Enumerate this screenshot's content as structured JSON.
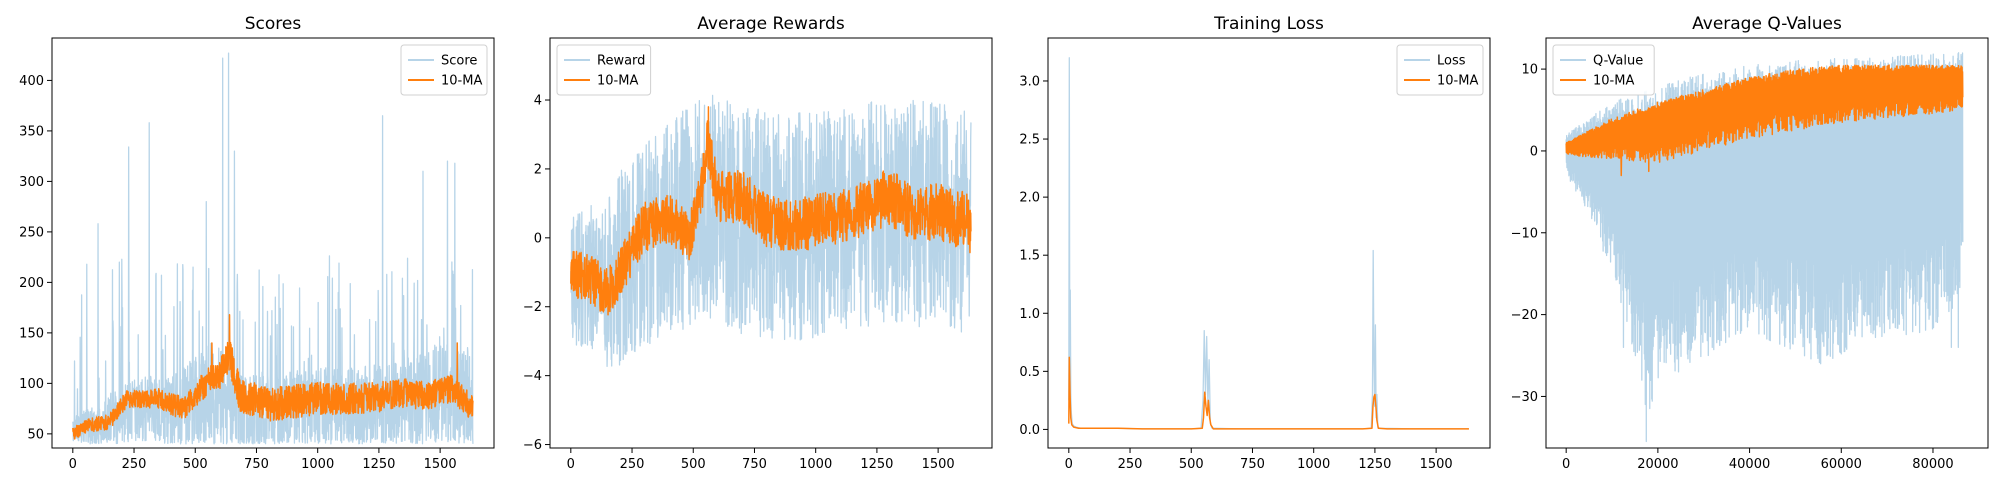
{
  "chart_data": [
    {
      "type": "line",
      "title": "Scores",
      "xlim": [
        -85,
        1720
      ],
      "ylim": [
        36,
        442
      ],
      "xticks": [
        0,
        250,
        500,
        750,
        1000,
        1250,
        1500
      ],
      "yticks": [
        50,
        100,
        150,
        200,
        250,
        300,
        350,
        400
      ],
      "legend": "upper right",
      "series": [
        {
          "name": "Score",
          "color": "#b7d4e8",
          "style": "noisy",
          "n": 1635,
          "x_end": 1634,
          "points": [
            [
              0,
              55
            ],
            [
              100,
              58
            ],
            [
              200,
              70
            ],
            [
              300,
              75
            ],
            [
              400,
              70
            ],
            [
              500,
              80
            ],
            [
              600,
              90
            ],
            [
              650,
              75
            ],
            [
              700,
              68
            ],
            [
              800,
              68
            ],
            [
              900,
              72
            ],
            [
              1000,
              78
            ],
            [
              1100,
              72
            ],
            [
              1250,
              76
            ],
            [
              1400,
              80
            ],
            [
              1500,
              88
            ],
            [
              1634,
              80
            ]
          ],
          "noise": [
            [
              0,
              12
            ],
            [
              200,
              30
            ],
            [
              400,
              35
            ],
            [
              550,
              55
            ],
            [
              700,
              40
            ],
            [
              1000,
              40
            ],
            [
              1300,
              45
            ],
            [
              1634,
              55
            ]
          ],
          "floor": 40,
          "spike_prob": 0.07,
          "spike_range": [
            90,
            230
          ],
          "peaks": [
            [
              612,
              422
            ],
            [
              636,
              427
            ],
            [
              228,
              334
            ],
            [
              312,
              358
            ],
            [
              1265,
              365
            ],
            [
              660,
              330
            ],
            [
              1430,
              310
            ],
            [
              1530,
              320
            ],
            [
              1560,
              318
            ],
            [
              103,
              258
            ],
            [
              190,
              220
            ],
            [
              545,
              280
            ]
          ]
        },
        {
          "name": "10-MA",
          "color": "#ff7f0e",
          "style": "noisy",
          "n": 1635,
          "x_end": 1634,
          "points": [
            [
              0,
              50
            ],
            [
              60,
              58
            ],
            [
              150,
              62
            ],
            [
              220,
              85
            ],
            [
              350,
              85
            ],
            [
              450,
              75
            ],
            [
              550,
              102
            ],
            [
              600,
              110
            ],
            [
              640,
              130
            ],
            [
              680,
              90
            ],
            [
              800,
              78
            ],
            [
              900,
              82
            ],
            [
              1000,
              85
            ],
            [
              1200,
              85
            ],
            [
              1350,
              90
            ],
            [
              1450,
              88
            ],
            [
              1550,
              95
            ],
            [
              1634,
              75
            ]
          ],
          "noise": [
            [
              0,
              6
            ],
            [
              500,
              12
            ],
            [
              650,
              18
            ],
            [
              1634,
              13
            ]
          ],
          "floor": 44,
          "peaks": [
            [
              640,
              168
            ],
            [
              1570,
              140
            ],
            [
              568,
              140
            ]
          ]
        }
      ]
    },
    {
      "type": "line",
      "title": "Average Rewards",
      "xlim": [
        -85,
        1720
      ],
      "ylim": [
        -6.1,
        5.8
      ],
      "xticks": [
        0,
        250,
        500,
        750,
        1000,
        1250,
        1500
      ],
      "yticks": [
        -6,
        -4,
        -2,
        0,
        2,
        4
      ],
      "legend": "upper left",
      "series": [
        {
          "name": "Reward",
          "color": "#b7d4e8",
          "style": "noisy",
          "n": 1635,
          "x_end": 1634,
          "points": [
            [
              0,
              -1.2
            ],
            [
              150,
              -1.3
            ],
            [
              250,
              -0.5
            ],
            [
              400,
              0.2
            ],
            [
              550,
              1.0
            ],
            [
              700,
              0.5
            ],
            [
              900,
              0.3
            ],
            [
              1100,
              0.5
            ],
            [
              1300,
              0.8
            ],
            [
              1500,
              0.6
            ],
            [
              1634,
              0.5
            ]
          ],
          "noise": [
            [
              0,
              1.8
            ],
            [
              200,
              2.8
            ],
            [
              500,
              3.3
            ],
            [
              1634,
              3.3
            ]
          ],
          "floor": -5.7,
          "ceil": 5.3
        },
        {
          "name": "10-MA",
          "color": "#ff7f0e",
          "style": "noisy",
          "n": 1635,
          "x_end": 1634,
          "points": [
            [
              0,
              -1.0
            ],
            [
              80,
              -1.2
            ],
            [
              150,
              -1.6
            ],
            [
              200,
              -1.0
            ],
            [
              300,
              0.3
            ],
            [
              400,
              0.6
            ],
            [
              480,
              0.0
            ],
            [
              530,
              1.2
            ],
            [
              560,
              2.8
            ],
            [
              600,
              1.2
            ],
            [
              700,
              1.2
            ],
            [
              800,
              0.5
            ],
            [
              900,
              0.3
            ],
            [
              1000,
              0.5
            ],
            [
              1150,
              0.7
            ],
            [
              1300,
              1.2
            ],
            [
              1400,
              0.7
            ],
            [
              1500,
              0.8
            ],
            [
              1634,
              0.4
            ]
          ],
          "noise": [
            [
              0,
              0.7
            ],
            [
              1634,
              0.85
            ]
          ],
          "floor": -3.2,
          "ceil": 3.8,
          "peaks": [
            [
              562,
              3.8
            ]
          ]
        }
      ]
    },
    {
      "type": "line",
      "title": "Training Loss",
      "xlim": [
        -85,
        1720
      ],
      "ylim": [
        -0.16,
        3.37
      ],
      "xticks": [
        0,
        250,
        500,
        750,
        1000,
        1250,
        1500
      ],
      "yticks": [
        0.0,
        0.5,
        1.0,
        1.5,
        2.0,
        2.5,
        3.0
      ],
      "legend": "upper right",
      "series": [
        {
          "name": "Loss",
          "color": "#b7d4e8",
          "style": "points",
          "x": [
            0,
            2,
            4,
            6,
            8,
            10,
            14,
            20,
            30,
            50,
            100,
            200,
            300,
            400,
            500,
            540,
            548,
            553,
            558,
            563,
            568,
            573,
            578,
            585,
            600,
            700,
            800,
            900,
            1000,
            1100,
            1200,
            1235,
            1240,
            1243,
            1246,
            1249,
            1252,
            1255,
            1258,
            1262,
            1270,
            1400,
            1500,
            1634
          ],
          "y": [
            0.25,
            3.2,
            0.5,
            1.2,
            0.3,
            0.15,
            0.05,
            0.03,
            0.02,
            0.01,
            0.01,
            0.01,
            0.005,
            0.005,
            0.005,
            0.01,
            0.25,
            0.85,
            0.3,
            0.8,
            0.2,
            0.6,
            0.05,
            0.01,
            0.01,
            0.005,
            0.005,
            0.005,
            0.005,
            0.005,
            0.005,
            0.01,
            0.3,
            1.54,
            0.6,
            0.2,
            0.9,
            0.1,
            0.3,
            0.02,
            0.01,
            0.005,
            0.005,
            0.005
          ]
        },
        {
          "name": "10-MA",
          "color": "#ff7f0e",
          "style": "points",
          "x": [
            0,
            2,
            5,
            8,
            12,
            20,
            40,
            100,
            200,
            300,
            400,
            500,
            545,
            550,
            555,
            560,
            565,
            570,
            575,
            580,
            590,
            700,
            800,
            900,
            1000,
            1100,
            1200,
            1238,
            1242,
            1246,
            1250,
            1254,
            1258,
            1264,
            1300,
            1400,
            1500,
            1634
          ],
          "y": [
            0.05,
            0.62,
            0.3,
            0.1,
            0.04,
            0.02,
            0.01,
            0.01,
            0.01,
            0.005,
            0.005,
            0.005,
            0.01,
            0.1,
            0.32,
            0.2,
            0.12,
            0.25,
            0.1,
            0.04,
            0.005,
            0.005,
            0.005,
            0.005,
            0.005,
            0.005,
            0.005,
            0.01,
            0.2,
            0.28,
            0.3,
            0.2,
            0.08,
            0.01,
            0.005,
            0.005,
            0.005,
            0.005
          ]
        }
      ]
    },
    {
      "type": "line",
      "title": "Average Q-Values",
      "xlim": [
        -4400,
        92000
      ],
      "ylim": [
        -36.3,
        13.8
      ],
      "xticks": [
        0,
        20000,
        40000,
        60000,
        80000
      ],
      "yticks": [
        -30,
        -20,
        -10,
        0,
        10
      ],
      "legend": "upper left",
      "series": [
        {
          "name": "Q-Value",
          "color": "#b7d4e8",
          "style": "envelope",
          "x_end": 86500,
          "upper": [
            [
              0,
              2
            ],
            [
              5000,
              4
            ],
            [
              10000,
              6
            ],
            [
              20000,
              8
            ],
            [
              30000,
              9.5
            ],
            [
              40000,
              10.5
            ],
            [
              50000,
              11
            ],
            [
              60000,
              11.5
            ],
            [
              70000,
              11.5
            ],
            [
              80000,
              12
            ],
            [
              86500,
              12
            ]
          ],
          "lower": [
            [
              0,
              -3
            ],
            [
              5000,
              -8
            ],
            [
              10000,
              -15
            ],
            [
              15000,
              -25
            ],
            [
              18000,
              -33
            ],
            [
              20000,
              -28
            ],
            [
              30000,
              -25
            ],
            [
              40000,
              -22
            ],
            [
              55000,
              -26
            ],
            [
              70000,
              -23
            ],
            [
              80000,
              -22
            ],
            [
              86500,
              -18
            ]
          ],
          "dips": [
            [
              17500,
              -35.5
            ],
            [
              16500,
              -28
            ],
            [
              24500,
              -27
            ],
            [
              55500,
              -26
            ],
            [
              84000,
              -24
            ],
            [
              85500,
              -24
            ],
            [
              12500,
              -24
            ],
            [
              31000,
              -25
            ]
          ]
        },
        {
          "name": "10-MA",
          "color": "#ff7f0e",
          "style": "envelope",
          "x_end": 86500,
          "upper": [
            [
              0,
              1
            ],
            [
              10000,
              4
            ],
            [
              20000,
              6
            ],
            [
              30000,
              7.5
            ],
            [
              40000,
              9
            ],
            [
              50000,
              10
            ],
            [
              60000,
              10.5
            ],
            [
              70000,
              10.5
            ],
            [
              80000,
              10.5
            ],
            [
              86500,
              10.5
            ]
          ],
          "lower": [
            [
              0,
              -0.5
            ],
            [
              10000,
              -1
            ],
            [
              20000,
              -1.5
            ],
            [
              30000,
              0
            ],
            [
              40000,
              1.5
            ],
            [
              50000,
              2.5
            ],
            [
              60000,
              3.5
            ],
            [
              70000,
              4
            ],
            [
              80000,
              4.5
            ],
            [
              86500,
              5
            ]
          ],
          "dips": [
            [
              12000,
              -3
            ],
            [
              18000,
              -2.5
            ]
          ]
        }
      ]
    }
  ]
}
